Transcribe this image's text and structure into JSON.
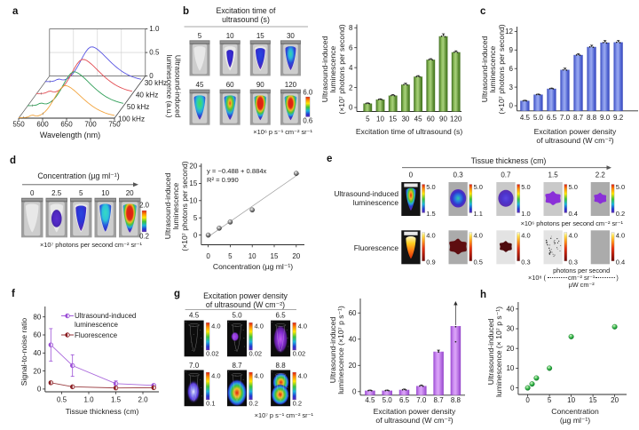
{
  "panels": {
    "a": {
      "letter": "a"
    },
    "b": {
      "letter": "b"
    },
    "c": {
      "letter": "c"
    },
    "d": {
      "letter": "d"
    },
    "e": {
      "letter": "e"
    },
    "f": {
      "letter": "f"
    },
    "g": {
      "letter": "g"
    },
    "h": {
      "letter": "h"
    }
  },
  "chart_data": [
    {
      "panel": "a",
      "type": "line",
      "projection": "waterfall3d",
      "xlabel": "Wavelength (nm)",
      "ylabel": "Ultrasound-induced luminescence (a.u.)",
      "ylabel_lines": [
        "Ultrasound-induced",
        "luminescence (a.u.)"
      ],
      "xticks": [
        "550",
        "600",
        "650",
        "700",
        "750"
      ],
      "yticks": [
        "0",
        "0.5",
        "1.0"
      ],
      "xlim": [
        550,
        750
      ],
      "ylim": [
        0,
        1.0
      ],
      "x": [
        550,
        555,
        560,
        565,
        570,
        575,
        580,
        585,
        590,
        595,
        600,
        605,
        610,
        615,
        620,
        625,
        630,
        635,
        640,
        645,
        650,
        655,
        660,
        665,
        670,
        675,
        680,
        685,
        690,
        695,
        700,
        705,
        710,
        715,
        720,
        725,
        730,
        735,
        740,
        745,
        750
      ],
      "series": [
        {
          "name": "30 kHz",
          "color": "#5552e2",
          "y": [
            0.012,
            0.012,
            0.013,
            0.016,
            0.029,
            0.056,
            0.065,
            0.05,
            0.049,
            0.068,
            0.101,
            0.147,
            0.209,
            0.284,
            0.372,
            0.467,
            0.562,
            0.646,
            0.71,
            0.746,
            0.748,
            0.725,
            0.69,
            0.647,
            0.599,
            0.549,
            0.498,
            0.447,
            0.398,
            0.352,
            0.309,
            0.269,
            0.232,
            0.2,
            0.171,
            0.145,
            0.123,
            0.104,
            0.088,
            0.074,
            0.062
          ]
        },
        {
          "name": "40 kHz",
          "color": "#e24a50",
          "y": [
            0.012,
            0.012,
            0.013,
            0.016,
            0.029,
            0.056,
            0.064,
            0.05,
            0.049,
            0.068,
            0.1,
            0.146,
            0.206,
            0.281,
            0.367,
            0.461,
            0.554,
            0.637,
            0.7,
            0.736,
            0.738,
            0.716,
            0.681,
            0.639,
            0.592,
            0.542,
            0.491,
            0.442,
            0.393,
            0.347,
            0.305,
            0.265,
            0.229,
            0.197,
            0.169,
            0.144,
            0.122,
            0.103,
            0.087,
            0.073,
            0.062
          ]
        },
        {
          "name": "50 kHz",
          "color": "#2f9e57",
          "y": [
            0.012,
            0.012,
            0.013,
            0.016,
            0.029,
            0.056,
            0.064,
            0.05,
            0.048,
            0.067,
            0.099,
            0.144,
            0.203,
            0.277,
            0.362,
            0.455,
            0.547,
            0.629,
            0.691,
            0.726,
            0.728,
            0.706,
            0.672,
            0.63,
            0.584,
            0.535,
            0.485,
            0.436,
            0.388,
            0.343,
            0.301,
            0.262,
            0.226,
            0.195,
            0.167,
            0.142,
            0.12,
            0.102,
            0.086,
            0.072,
            0.061
          ]
        },
        {
          "name": "100 kHz",
          "color": "#f2a33c",
          "y": [
            0.012,
            0.012,
            0.013,
            0.015,
            0.029,
            0.055,
            0.064,
            0.049,
            0.046,
            0.064,
            0.094,
            0.136,
            0.193,
            0.262,
            0.343,
            0.43,
            0.517,
            0.594,
            0.653,
            0.686,
            0.689,
            0.667,
            0.635,
            0.596,
            0.552,
            0.506,
            0.459,
            0.412,
            0.367,
            0.324,
            0.285,
            0.248,
            0.215,
            0.185,
            0.158,
            0.135,
            0.114,
            0.097,
            0.082,
            0.069,
            0.058
          ]
        }
      ]
    },
    {
      "panel": "b",
      "type": "bar",
      "categories": [
        "5",
        "10",
        "15",
        "30",
        "45",
        "60",
        "90",
        "120"
      ],
      "values": [
        0.4,
        0.8,
        1.2,
        2.3,
        3.1,
        4.8,
        7.15,
        5.55
      ],
      "errors": [
        0.06,
        0.07,
        0.1,
        0.14,
        0.1,
        0.1,
        0.25,
        0.14
      ],
      "yticks": [
        0,
        2,
        4,
        6,
        8
      ],
      "ylim": [
        0,
        8
      ],
      "xlabel": "Excitation time of ultrasound (s)",
      "xlabel_lines": [
        "Excitation time of ultrasound (s)"
      ],
      "ylabel": "Ultrasound-induced luminescence (×10⁷ photons per second)",
      "ylabel_lines": [
        "Ultrasound-induced",
        "luminescence",
        "(×10⁷ photons per second)"
      ],
      "bar_color": "#6fa13f",
      "bar_gradient": [
        "#3f6e20",
        "#8cbc5a",
        "#a9d07c",
        "#5d8f33",
        "#41701f"
      ]
    },
    {
      "panel": "c",
      "type": "bar",
      "categories": [
        "4.5",
        "5.0",
        "6.5",
        "7.0",
        "8.7",
        "8.8",
        "9.0",
        "9.2"
      ],
      "values": [
        0.8,
        1.8,
        2.75,
        5.8,
        8.2,
        9.5,
        10.2,
        10.25
      ],
      "errors": [
        0.08,
        0.08,
        0.1,
        0.28,
        0.2,
        0.28,
        0.35,
        0.3
      ],
      "yticks": [
        0,
        3,
        6,
        9,
        12
      ],
      "ylim": [
        0,
        12
      ],
      "xlabel": "Excitation power density of ultrasound (W cm⁻²)",
      "xlabel_lines": [
        "Excitation power density",
        "of ultrasound (W cm⁻²)"
      ],
      "ylabel": "Ultrasound-induced luminescence (×10⁷ photons per second)",
      "ylabel_lines": [
        "Ultrasound-induced",
        "luminescence",
        "(×10⁷ photons per second)"
      ],
      "bar_color": "#5c74dc",
      "bar_gradient": [
        "#3a4cbe",
        "#7e90e8",
        "#9aaaf0",
        "#4f63d2",
        "#3847bb"
      ]
    },
    {
      "panel": "d",
      "type": "scatter",
      "x": [
        0,
        2.5,
        5,
        10,
        20
      ],
      "y": [
        0,
        2,
        3.8,
        7.3,
        17.9
      ],
      "fit": {
        "slope": 0.884,
        "intercept": -0.488
      },
      "annotation_lines": [
        "y = −0.488 + 0.884x",
        "R² = 0.990"
      ],
      "xticks": [
        0,
        5,
        10,
        15,
        20
      ],
      "yticks": [
        0,
        5,
        10,
        15,
        20
      ],
      "xlim": [
        0,
        20
      ],
      "ylim": [
        0,
        20
      ],
      "xlabel": "Concentration (µg ml⁻¹)",
      "xlabel_lines": [
        "Concentration (µg ml⁻¹)"
      ],
      "ylabel": "Ultrasound-induced luminescence (×10⁷ photons per second)",
      "ylabel_lines": [
        "Ultrasound-induced",
        "luminescence",
        "(×10⁷ photons per second)"
      ],
      "marker_color": "#555555"
    },
    {
      "panel": "f",
      "type": "line",
      "x": [
        0.3,
        0.7,
        1.5,
        2.2
      ],
      "series": [
        {
          "name": "Ultrasound-induced luminescence",
          "label_lines": [
            "Ultrasound-induced",
            "luminescence"
          ],
          "color": "#9b4fd6",
          "y": [
            49,
            26,
            6,
            4
          ],
          "yerr": [
            18,
            12,
            3,
            1.5
          ]
        },
        {
          "name": "Fluorescence",
          "label_lines": [
            "Fluorescence"
          ],
          "color": "#8b1e23",
          "y": [
            7,
            2.5,
            1.2,
            1.5
          ],
          "yerr": [
            1.5,
            1.2,
            0.8,
            1.2
          ]
        }
      ],
      "xticks": [
        0.5,
        1.0,
        1.5,
        2.0
      ],
      "yticks": [
        0,
        20,
        40,
        60,
        80
      ],
      "ylim": [
        0,
        80
      ],
      "xlabel": "Tissue thickness (cm)",
      "xlabel_lines": [
        "Tissue thickness (cm)"
      ],
      "ylabel": "Signal-to-noise ratio",
      "ylabel_lines": [
        "Signal-to-noise ratio"
      ],
      "legend_position": "upper right"
    },
    {
      "panel": "g",
      "type": "bar",
      "categories": [
        "4.5",
        "5.0",
        "6.5",
        "7.0",
        "8.7",
        "8.8"
      ],
      "values": [
        0.8,
        0.8,
        1.4,
        4.3,
        30.5,
        50
      ],
      "errors": [
        0.4,
        0.4,
        0.6,
        0.8,
        1.2,
        19
      ],
      "error_arrow_index": 5,
      "dots": [
        [],
        [],
        [],
        [],
        [
          30.2,
          31.2
        ],
        [
          38,
          49.5
        ]
      ],
      "yticks": [
        0,
        20,
        40,
        60
      ],
      "ylim": [
        0,
        60
      ],
      "xlabel": "Excitation power density of ultrasound (W cm⁻²)",
      "xlabel_lines": [
        "Excitation power density",
        "of ultrasound  (W cm⁻²)"
      ],
      "ylabel": "Ultrasound-induced luminescence (×10⁷ p s⁻¹)",
      "ylabel_lines": [
        "Ultrasound-induced",
        "luminescence (×10⁷ p s⁻¹)"
      ],
      "bar_color": "#bb74e8",
      "bar_gradient": [
        "#9a4ad0",
        "#cd8ef2",
        "#dca6f8",
        "#b269e0",
        "#9343c8"
      ]
    },
    {
      "panel": "h",
      "type": "scatter",
      "x": [
        0,
        1,
        2,
        5,
        10,
        20
      ],
      "y": [
        0,
        2,
        5,
        10,
        26,
        31
      ],
      "xticks": [
        0,
        5,
        10,
        15,
        20
      ],
      "yticks": [
        0,
        10,
        20,
        30,
        40
      ],
      "xlim": [
        0,
        20
      ],
      "ylim": [
        0,
        40
      ],
      "xlabel": "Concentration (µg ml⁻¹)",
      "xlabel_lines": [
        "Concentration",
        "(µg ml⁻¹)"
      ],
      "ylabel": "Ultrasound-induced luminescence (× 10⁷ p s⁻¹)",
      "ylabel_lines": [
        "Ultrasound-induced",
        "luminescence (× 10⁷ p s⁻¹)"
      ],
      "marker_color": "#1ea83c"
    }
  ],
  "image_strips": {
    "b": {
      "title_lines": [
        "Excitation time of",
        "ultrasound (s)"
      ],
      "items": [
        {
          "label": "5",
          "blob": "none"
        },
        {
          "label": "10",
          "blob": "blue_small"
        },
        {
          "label": "15",
          "blob": "blue"
        },
        {
          "label": "30",
          "blob": "blue_green"
        },
        {
          "label": "45",
          "blob": "green"
        },
        {
          "label": "60",
          "blob": "green_red"
        },
        {
          "label": "90",
          "blob": "hot"
        },
        {
          "label": "120",
          "blob": "hot_small"
        }
      ],
      "colorbar": {
        "max": "6.0",
        "min": "0.6",
        "style": "jet"
      },
      "unit": "×10⁶ p s⁻¹ cm⁻² sr⁻¹"
    },
    "d": {
      "title": "Concentration (µg ml⁻¹)",
      "items": [
        {
          "label": "0",
          "blob": "none"
        },
        {
          "label": "2.5",
          "blob": "purple_core"
        },
        {
          "label": "5",
          "blob": "blue"
        },
        {
          "label": "10",
          "blob": "cyan"
        },
        {
          "label": "20",
          "blob": "hot"
        }
      ],
      "colorbar": {
        "max": "2.0",
        "min": "0.2",
        "style": "jet"
      },
      "unit": "×10⁷ photons per second cm⁻² sr⁻¹"
    },
    "e": {
      "title": "Tissue thickness (cm)",
      "col_labels": [
        "0",
        "0.3",
        "0.7",
        "1.5",
        "2.2"
      ],
      "rows": [
        {
          "label_lines": [
            "Ultrasound-induced",
            "luminescence"
          ],
          "cb_style": "jet",
          "items": [
            {
              "cb_max": "5.0",
              "cb_min": "1.5",
              "blob": "rainbow_tube",
              "bg": "dark"
            },
            {
              "cb_max": "5.0",
              "cb_min": "1.1",
              "blob": "blue_oval",
              "bg": "gray"
            },
            {
              "cb_max": "5.0",
              "cb_min": "1.0",
              "blob": "indigo_oval",
              "bg": "lightgray"
            },
            {
              "cb_max": "5.0",
              "cb_min": "0.4",
              "blob": "purple_patch",
              "bg": "lightgray"
            },
            {
              "cb_max": "5.0",
              "cb_min": "0.2",
              "blob": "purple_small",
              "bg": "gray"
            }
          ],
          "unit": "×10⁶ photons per second cm⁻² sr⁻¹"
        },
        {
          "label_lines": [
            "Fluorescence"
          ],
          "cb_style": "hot",
          "items": [
            {
              "cb_max": "4.0",
              "cb_min": "0.9",
              "blob": "fire_tube",
              "bg": "dark"
            },
            {
              "cb_max": "4.0",
              "cb_min": "0.5",
              "blob": "maroon_oval",
              "bg": "gray"
            },
            {
              "cb_max": "4.0",
              "cb_min": "0.3",
              "blob": "maroon_blob",
              "bg": "white"
            },
            {
              "cb_max": "4.0",
              "cb_min": "0.3",
              "blob": "speckles",
              "bg": "white"
            },
            {
              "cb_max": "4.0",
              "cb_min": "0.4",
              "blob": "none",
              "bg": "gray"
            }
          ],
          "unit_fraction": {
            "prefix": "×10⁸",
            "open": "(",
            "close": ")",
            "numerator_line1": "photons per second",
            "numerator_line2": "cm⁻² sr⁻¹",
            "denominator": "µW cm⁻²"
          }
        }
      ]
    },
    "g": {
      "title_lines": [
        "Excitation power density",
        "of ultrasound (W cm⁻²)"
      ],
      "cb_style": "jet",
      "items": [
        {
          "label": "4.5",
          "cb_max": "4.0",
          "cb_min": "0.02",
          "blob": "outline"
        },
        {
          "label": "5.0",
          "cb_max": "4.0",
          "cb_min": "0.02",
          "blob": "g_purple_small"
        },
        {
          "label": "6.5",
          "cb_max": "4.0",
          "cb_min": "0.02",
          "blob": "g_purple_glow"
        },
        {
          "label": "7.0",
          "cb_max": "4.0",
          "cb_min": "0.1",
          "blob": "g_blue_blob"
        },
        {
          "label": "8.7",
          "cb_max": "4.0",
          "cb_min": "0.2",
          "blob": "g_hot1"
        },
        {
          "label": "8.8",
          "cb_max": "4.0",
          "cb_min": "0.2",
          "blob": "g_hot2"
        }
      ],
      "unit": "×10⁷ p s⁻¹ cm⁻² sr⁻¹"
    }
  }
}
